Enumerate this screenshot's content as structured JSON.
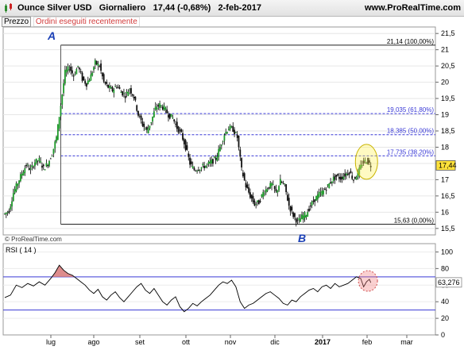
{
  "header": {
    "instrument": "Ounce Silver USD",
    "period": "Giornaliero",
    "price": "17,44 (-0,68%)",
    "date": "2-feb-2017",
    "site": "www.ProRealTime.com"
  },
  "tabs": {
    "price": "Prezzo",
    "orders": "Ordini eseguiti recentemente"
  },
  "copyright": "© ProRealTime.com",
  "chart_data": {
    "type": "candlestick",
    "price_axis": {
      "ylim": [
        15.3,
        21.7
      ],
      "ticks": [
        "15,5",
        "16",
        "16,5",
        "17",
        "17,5",
        "18",
        "18,5",
        "19",
        "19,5",
        "20",
        "20,5",
        "21",
        "21,5"
      ],
      "tick_values": [
        15.5,
        16,
        16.5,
        17,
        17.5,
        18,
        18.5,
        19,
        19.5,
        20,
        20.5,
        21,
        21.5
      ],
      "current_value": "17,44"
    },
    "x_axis": {
      "labels": [
        "lug",
        "ago",
        "set",
        "ott",
        "nov",
        "dic",
        "2017",
        "feb",
        "mar"
      ],
      "bold_label": "2017"
    },
    "series_path": [
      [
        0,
        15.95
      ],
      [
        3,
        16.05
      ],
      [
        6,
        16.6
      ],
      [
        9,
        16.9
      ],
      [
        12,
        17.2
      ],
      [
        15,
        17.45
      ],
      [
        18,
        17.3
      ],
      [
        21,
        17.55
      ],
      [
        24,
        17.6
      ],
      [
        27,
        17.35
      ],
      [
        30,
        17.5
      ],
      [
        33,
        17.8
      ],
      [
        36,
        18.3
      ],
      [
        39,
        19.3
      ],
      [
        42,
        20.3
      ],
      [
        45,
        20.45
      ],
      [
        48,
        20.2
      ],
      [
        51,
        20.5
      ],
      [
        54,
        20.1
      ],
      [
        57,
        19.95
      ],
      [
        60,
        20.2
      ],
      [
        63,
        20.6
      ],
      [
        66,
        20.5
      ],
      [
        69,
        20.0
      ],
      [
        72,
        19.85
      ],
      [
        75,
        19.75
      ],
      [
        78,
        19.9
      ],
      [
        81,
        19.7
      ],
      [
        84,
        19.6
      ],
      [
        87,
        19.8
      ],
      [
        90,
        19.55
      ],
      [
        93,
        19.0
      ],
      [
        96,
        18.7
      ],
      [
        99,
        18.5
      ],
      [
        102,
        18.8
      ],
      [
        105,
        19.2
      ],
      [
        108,
        19.3
      ],
      [
        111,
        19.2
      ],
      [
        114,
        19.0
      ],
      [
        117,
        18.9
      ],
      [
        120,
        18.6
      ],
      [
        123,
        18.4
      ],
      [
        126,
        18.0
      ],
      [
        129,
        17.5
      ],
      [
        132,
        17.3
      ],
      [
        135,
        17.35
      ],
      [
        138,
        17.4
      ],
      [
        141,
        17.45
      ],
      [
        144,
        17.55
      ],
      [
        147,
        17.65
      ],
      [
        150,
        18.0
      ],
      [
        153,
        18.4
      ],
      [
        156,
        18.6
      ],
      [
        159,
        18.55
      ],
      [
        162,
        18.3
      ],
      [
        165,
        17.3
      ],
      [
        168,
        16.8
      ],
      [
        171,
        16.5
      ],
      [
        174,
        16.25
      ],
      [
        177,
        16.3
      ],
      [
        180,
        16.6
      ],
      [
        183,
        16.75
      ],
      [
        186,
        16.85
      ],
      [
        189,
        16.6
      ],
      [
        192,
        16.95
      ],
      [
        195,
        16.8
      ],
      [
        198,
        16.2
      ],
      [
        201,
        15.9
      ],
      [
        204,
        15.7
      ],
      [
        207,
        15.85
      ],
      [
        210,
        15.95
      ],
      [
        213,
        16.2
      ],
      [
        216,
        16.4
      ],
      [
        219,
        16.55
      ],
      [
        222,
        16.65
      ],
      [
        225,
        16.8
      ],
      [
        228,
        17.0
      ],
      [
        231,
        17.1
      ],
      [
        234,
        17.05
      ],
      [
        237,
        17.15
      ],
      [
        240,
        17.25
      ],
      [
        243,
        17.0
      ],
      [
        246,
        17.2
      ],
      [
        249,
        17.5
      ],
      [
        252,
        17.6
      ],
      [
        255,
        17.44
      ]
    ],
    "annotations": [
      {
        "label": "A",
        "role": "pivot-high"
      },
      {
        "label": "B",
        "role": "pivot-low"
      }
    ],
    "fibonacci_levels": [
      {
        "value": 21.14,
        "label": "21,14 (100,00%)",
        "style": "solid"
      },
      {
        "value": 19.035,
        "label": "19,035 (61,80%)",
        "style": "dashed"
      },
      {
        "value": 18.385,
        "label": "18,385 (50,00%)",
        "style": "dashed"
      },
      {
        "value": 17.735,
        "label": "17,735 (38,20%)",
        "style": "dashed"
      },
      {
        "value": 15.63,
        "label": "15,63 (0,00%)",
        "style": "solid"
      }
    ],
    "rsi": {
      "label": "RSI ( 14 )",
      "current": "63,276",
      "ylim": [
        0,
        110
      ],
      "ticks": [
        "0",
        "20",
        "40",
        "60",
        "80",
        "100"
      ],
      "tick_values": [
        0,
        20,
        40,
        60,
        80,
        100
      ],
      "overbought": 70,
      "oversold": 30,
      "series": [
        [
          0,
          45
        ],
        [
          4,
          48
        ],
        [
          8,
          60
        ],
        [
          12,
          57
        ],
        [
          16,
          62
        ],
        [
          20,
          59
        ],
        [
          24,
          64
        ],
        [
          28,
          60
        ],
        [
          32,
          68
        ],
        [
          35,
          75
        ],
        [
          38,
          84
        ],
        [
          41,
          78
        ],
        [
          44,
          74
        ],
        [
          47,
          72
        ],
        [
          50,
          68
        ],
        [
          53,
          64
        ],
        [
          56,
          60
        ],
        [
          59,
          54
        ],
        [
          62,
          50
        ],
        [
          65,
          55
        ],
        [
          68,
          46
        ],
        [
          71,
          42
        ],
        [
          74,
          48
        ],
        [
          77,
          52
        ],
        [
          80,
          45
        ],
        [
          83,
          40
        ],
        [
          86,
          46
        ],
        [
          89,
          52
        ],
        [
          92,
          58
        ],
        [
          95,
          62
        ],
        [
          98,
          54
        ],
        [
          101,
          50
        ],
        [
          104,
          56
        ],
        [
          107,
          48
        ],
        [
          110,
          40
        ],
        [
          113,
          36
        ],
        [
          116,
          42
        ],
        [
          119,
          46
        ],
        [
          122,
          34
        ],
        [
          125,
          28
        ],
        [
          128,
          32
        ],
        [
          131,
          38
        ],
        [
          134,
          35
        ],
        [
          137,
          40
        ],
        [
          140,
          44
        ],
        [
          143,
          48
        ],
        [
          146,
          54
        ],
        [
          149,
          60
        ],
        [
          152,
          64
        ],
        [
          155,
          62
        ],
        [
          158,
          66
        ],
        [
          161,
          58
        ],
        [
          164,
          40
        ],
        [
          167,
          32
        ],
        [
          170,
          36
        ],
        [
          173,
          38
        ],
        [
          176,
          42
        ],
        [
          179,
          46
        ],
        [
          182,
          50
        ],
        [
          185,
          52
        ],
        [
          188,
          48
        ],
        [
          191,
          44
        ],
        [
          194,
          38
        ],
        [
          197,
          36
        ],
        [
          200,
          42
        ],
        [
          203,
          40
        ],
        [
          206,
          46
        ],
        [
          209,
          50
        ],
        [
          212,
          54
        ],
        [
          215,
          56
        ],
        [
          218,
          52
        ],
        [
          221,
          58
        ],
        [
          224,
          60
        ],
        [
          227,
          56
        ],
        [
          230,
          62
        ],
        [
          233,
          58
        ],
        [
          236,
          60
        ],
        [
          239,
          62
        ],
        [
          242,
          66
        ],
        [
          245,
          70
        ],
        [
          248,
          68
        ],
        [
          250,
          58
        ],
        [
          252,
          64
        ],
        [
          254,
          67
        ],
        [
          255,
          63
        ]
      ]
    }
  }
}
